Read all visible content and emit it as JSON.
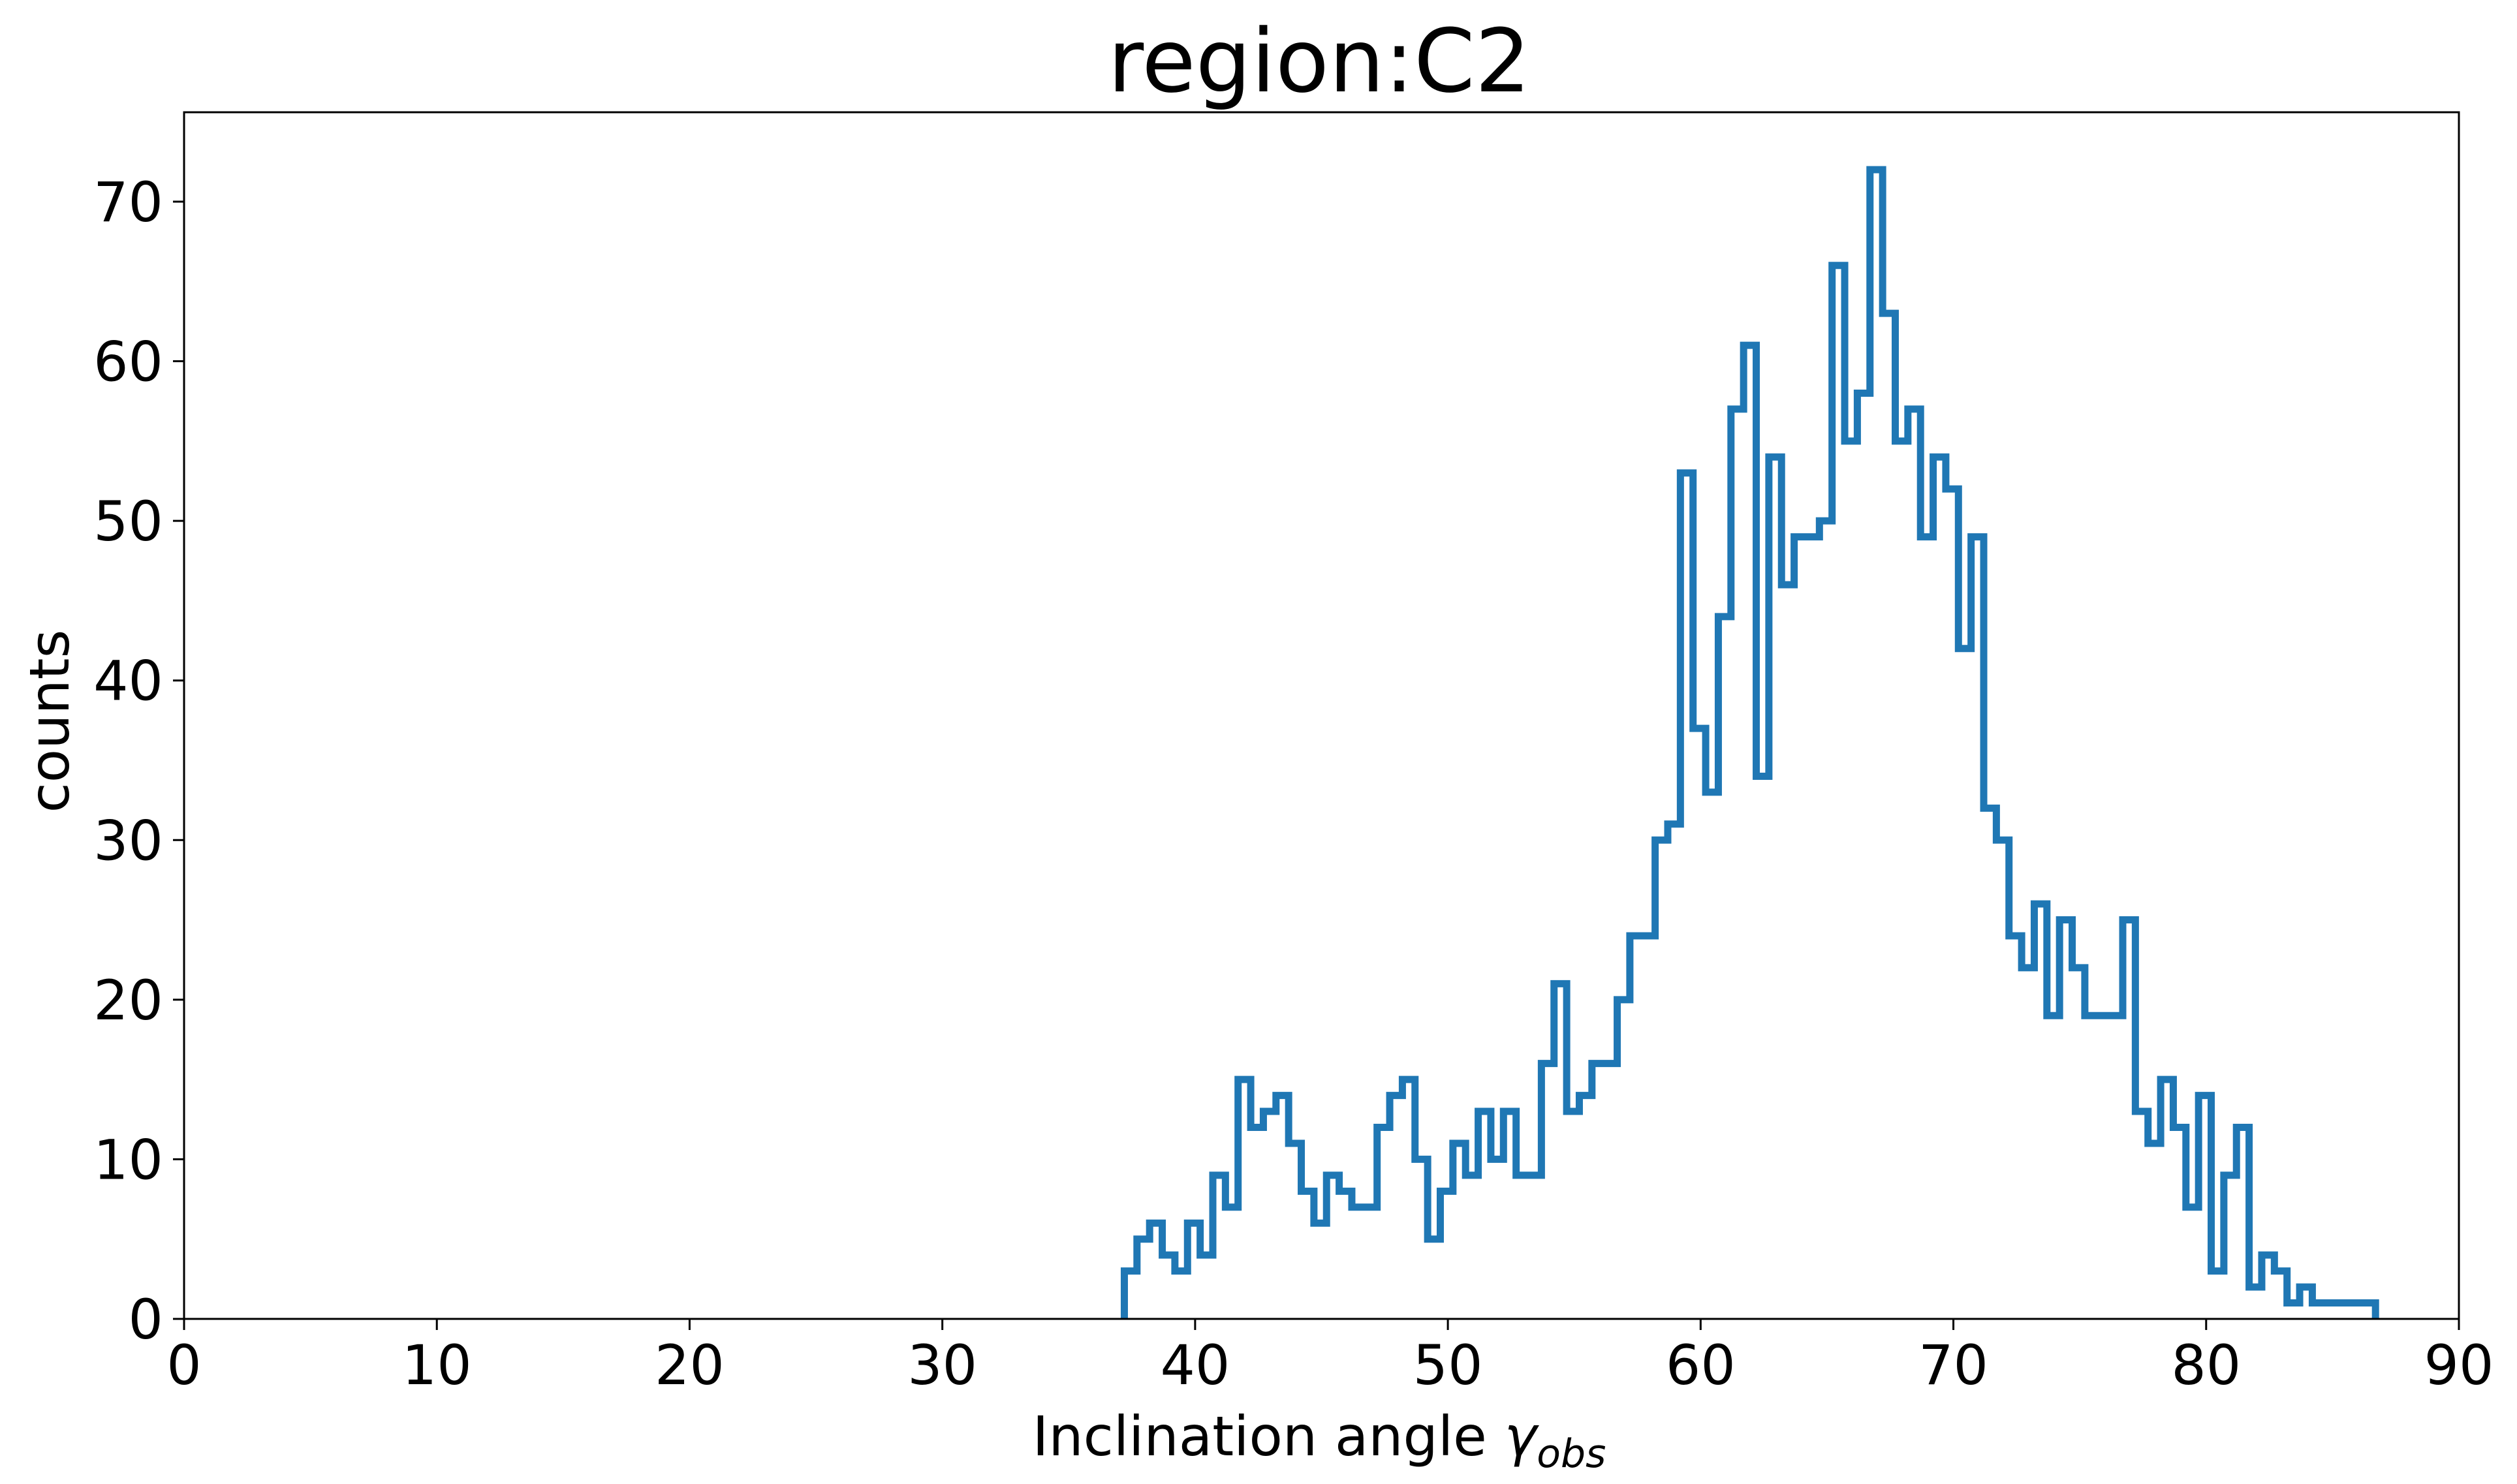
{
  "chart_data": {
    "type": "histogram",
    "title": "region:C2",
    "xlabel": "Inclination angle ",
    "xlabel_symbol": "γ",
    "xlabel_subscript": "obs",
    "ylabel": "counts",
    "xlim": [
      0,
      90
    ],
    "ylim": [
      0,
      75.6
    ],
    "xticks": [
      0,
      10,
      20,
      30,
      40,
      50,
      60,
      70,
      80,
      90
    ],
    "yticks": [
      0,
      10,
      20,
      30,
      40,
      50,
      60,
      70
    ],
    "grid": false,
    "line_color": "#1f77b4",
    "histtype": "step",
    "bin_start": 37.2,
    "bin_width": 0.5,
    "counts": [
      3,
      5,
      6,
      4,
      3,
      6,
      4,
      9,
      7,
      15,
      12,
      13,
      14,
      11,
      8,
      6,
      9,
      8,
      7,
      7,
      12,
      14,
      15,
      10,
      5,
      8,
      11,
      9,
      13,
      10,
      13,
      9,
      9,
      16,
      21,
      13,
      14,
      16,
      16,
      20,
      24,
      24,
      30,
      31,
      53,
      37,
      33,
      44,
      57,
      61,
      34,
      54,
      46,
      49,
      49,
      50,
      66,
      55,
      58,
      72,
      63,
      55,
      57,
      49,
      54,
      52,
      42,
      49,
      32,
      30,
      24,
      22,
      26,
      19,
      25,
      22,
      19,
      19,
      19,
      25,
      13,
      11,
      15,
      12,
      7,
      14,
      3,
      9,
      12,
      2,
      4,
      3,
      1,
      2,
      1,
      1,
      1,
      1,
      1
    ]
  }
}
